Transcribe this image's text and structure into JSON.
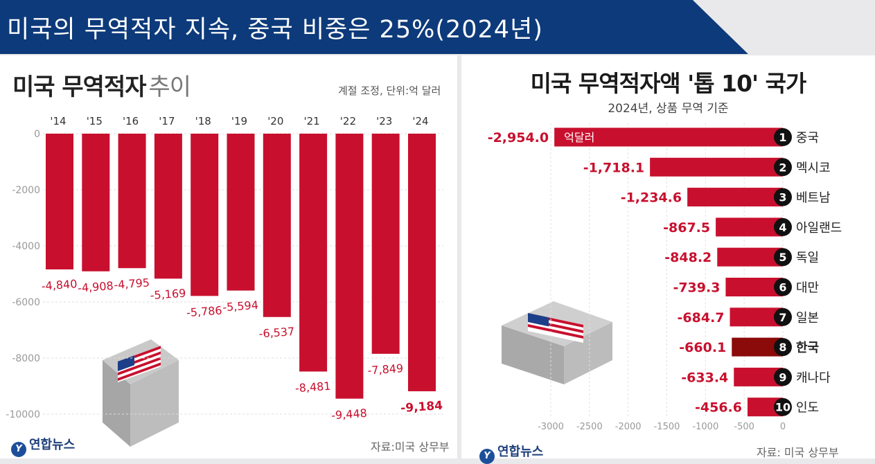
{
  "banner": {
    "title": "미국의 무역적자 지속, 중국 비중은 25%(2024년)"
  },
  "left_panel": {
    "title_main": "미국 무역적자",
    "title_thin": "추이",
    "unit": "계절 조정, 단위:억 달러",
    "source": "자료:미국 상무부",
    "logo": "연합뉴스"
  },
  "right_panel": {
    "title": "미국 무역적자액 '톱 10' 국가",
    "subtitle": "2024년, 상품 무역 기준",
    "unit_label": "억달러",
    "source": "자료: 미국 상무부",
    "logo": "연합뉴스"
  },
  "colors": {
    "bar": "#c8102e",
    "highlight": "#8b0a0a",
    "banner": "#0d3a7a"
  },
  "icons": [
    "us-flag-container-icon",
    "yonhap-logo-icon"
  ],
  "chart_data": [
    {
      "type": "bar",
      "title": "미국 무역적자 추이",
      "categories": [
        "'14",
        "'15",
        "'16",
        "'17",
        "'18",
        "'19",
        "'20",
        "'21",
        "'22",
        "'23",
        "'24"
      ],
      "values": [
        -4840,
        -4908,
        -4795,
        -5169,
        -5786,
        -5594,
        -6537,
        -8481,
        -9448,
        -7849,
        -9184
      ],
      "value_labels": [
        "-4,840",
        "-4,908",
        "-4,795",
        "-5,169",
        "-5,786",
        "-5,594",
        "-6,537",
        "-8,481",
        "-9,448",
        "-7,849",
        "-9,184"
      ],
      "yticks": [
        "0",
        "-2000",
        "-4000",
        "-6000",
        "-8000",
        "-10000"
      ],
      "ylim": [
        -10000,
        0
      ]
    },
    {
      "type": "bar",
      "orientation": "horizontal",
      "title": "미국 무역적자액 '톱 10' 국가",
      "ranks": [
        "1",
        "2",
        "3",
        "4",
        "5",
        "6",
        "7",
        "8",
        "9",
        "10"
      ],
      "categories": [
        "중국",
        "멕시코",
        "베트남",
        "아일랜드",
        "독일",
        "대만",
        "일본",
        "한국",
        "캐나다",
        "인도"
      ],
      "values": [
        -2954.0,
        -1718.1,
        -1234.6,
        -867.5,
        -848.2,
        -739.3,
        -684.7,
        -660.1,
        -633.4,
        -456.6
      ],
      "value_labels": [
        "-2,954.0",
        "-1,718.1",
        "-1,234.6",
        "-867.5",
        "-848.2",
        "-739.3",
        "-684.7",
        "-660.1",
        "-633.4",
        "-456.6"
      ],
      "highlight": "한국",
      "xticks": [
        "-3000",
        "-2500",
        "-2000",
        "-1500",
        "-1000",
        "-500",
        "0"
      ],
      "xlim": [
        -3000,
        0
      ]
    }
  ]
}
